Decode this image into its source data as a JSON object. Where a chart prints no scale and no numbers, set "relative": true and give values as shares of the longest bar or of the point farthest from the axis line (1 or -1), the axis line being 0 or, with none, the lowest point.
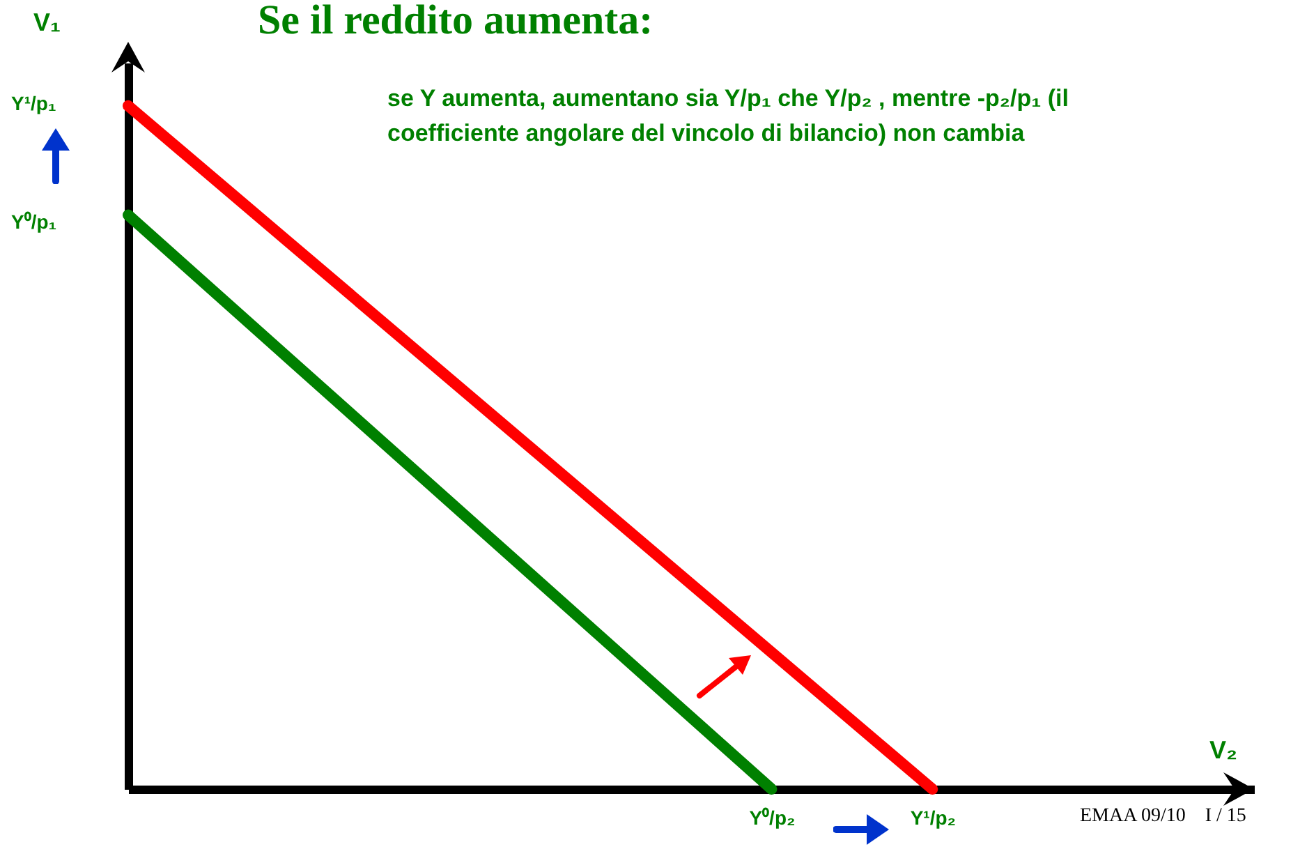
{
  "chart_data": {
    "type": "line",
    "title": "Se il reddito aumenta:",
    "xlabel": "V₂",
    "ylabel": "V₁",
    "relative": true,
    "categories": [
      null,
      null,
      null,
      null,
      "Y⁰/p₂",
      "Y¹/p₂",
      null,
      null
    ],
    "series": [
      {
        "color": "#008000",
        "values": [
          0.84,
          0.63,
          0.42,
          0.21,
          0,
          null,
          null,
          null
        ]
      },
      {
        "color": "#ff0000",
        "values": [
          1,
          0.8,
          0.6,
          0.4,
          0.2,
          0,
          null,
          null
        ]
      }
    ],
    "annotations": [
      "Y¹/p₁",
      "Y⁰/p₁",
      "se Y aumenta, aumentano sia Y/p₁ che Y/p₂ , mentre -p₂/p₁ (il coefficiente angolare del vincolo di bilancio) non cambia",
      "EMAA 09/10    I / 15"
    ],
    "line_style": "solid"
  }
}
